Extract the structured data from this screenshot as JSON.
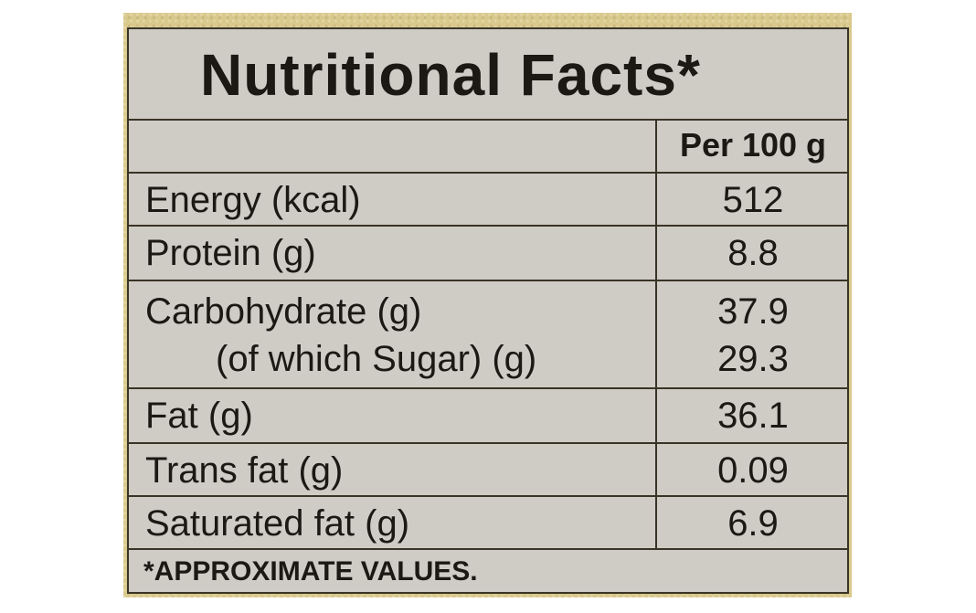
{
  "title": "Nutritional Facts*",
  "column_header": "Per 100 g",
  "rows": [
    {
      "name": "Energy (kcal)",
      "value": "512"
    },
    {
      "name": "Protein (g)",
      "value": "8.8"
    },
    {
      "name": "Carbohydrate (g)",
      "value": "37.9"
    },
    {
      "name": "(of which Sugar) (g)",
      "value": "29.3"
    },
    {
      "name": "Fat (g)",
      "value": "36.1"
    },
    {
      "name": "Trans fat (g)",
      "value": "0.09"
    },
    {
      "name": "Saturated fat (g)",
      "value": "6.9"
    }
  ],
  "footnote": "*APPROXIMATE VALUES.",
  "colors": {
    "panel": "#d9c98d",
    "table_background": "#cfccc6",
    "text": "#1c1813",
    "rule": "#3a3426"
  }
}
